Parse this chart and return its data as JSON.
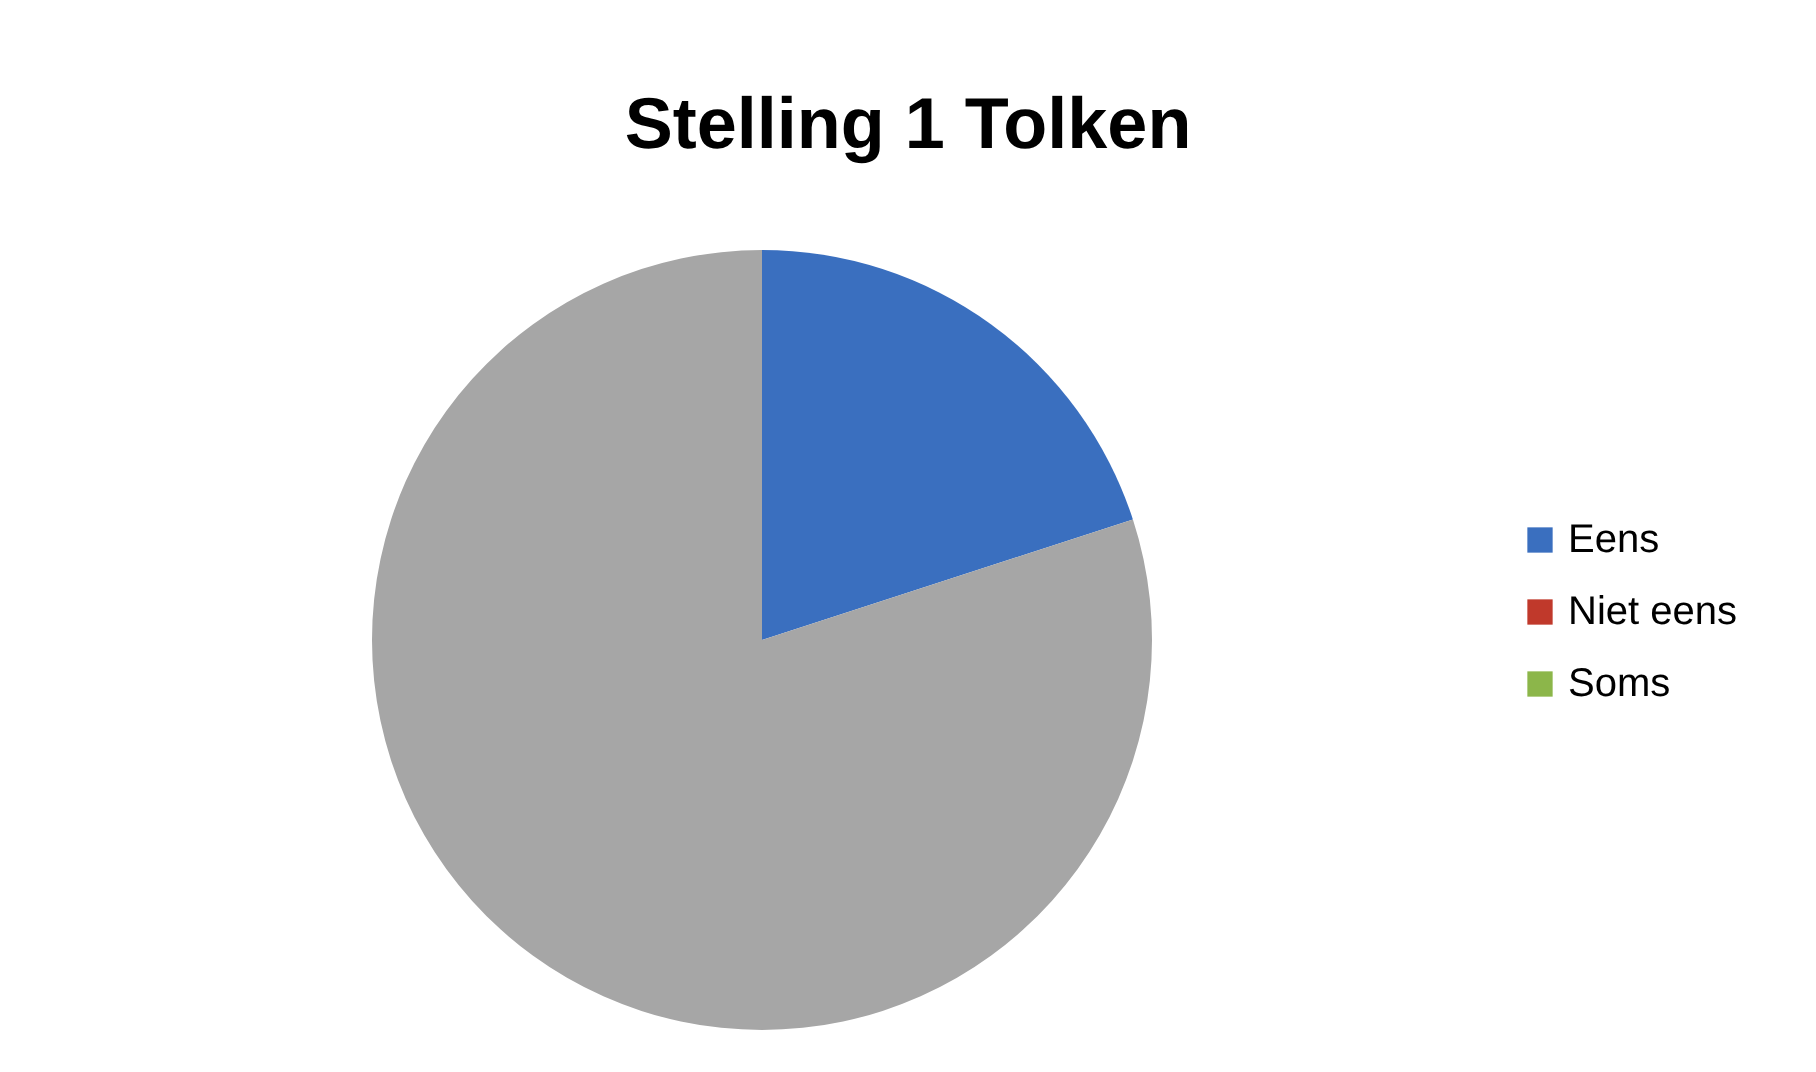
{
  "chart_data": {
    "type": "pie",
    "title": "Stelling 1 Tolken",
    "categories": [
      "Eens",
      "Niet eens",
      "Soms",
      null
    ],
    "values": [
      20,
      0,
      0,
      80
    ],
    "colors": [
      "#3a6fbf",
      "#c0392b",
      "#8cb64a",
      "#a6a6a6"
    ],
    "legend": "right"
  }
}
